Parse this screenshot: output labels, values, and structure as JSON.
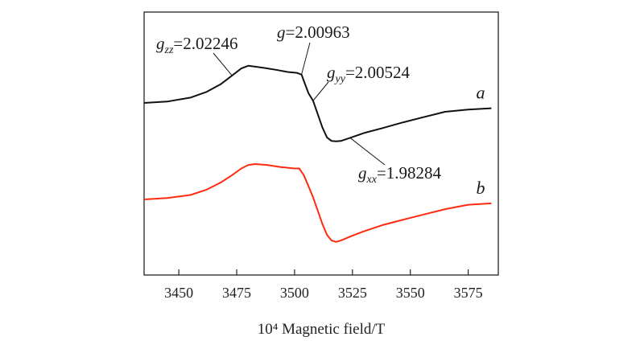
{
  "chart_data": {
    "type": "line",
    "xlabel": "10⁴ Magnetic field/T",
    "xlim": [
      3435,
      3588
    ],
    "ylim": [
      -1.2,
      1.0
    ],
    "x_ticks": [
      3450,
      3475,
      3500,
      3525,
      3550,
      3575
    ],
    "y_ticks_shown": false,
    "grid": false,
    "legend": "none",
    "series": [
      {
        "name": "a",
        "color": "#111111",
        "x": [
          3435,
          3445,
          3455,
          3462,
          3468,
          3473,
          3477,
          3480,
          3483,
          3487,
          3492,
          3497,
          3501,
          3503,
          3504,
          3506,
          3508,
          3510,
          3512,
          3514,
          3516,
          3518,
          3520,
          3524,
          3530,
          3538,
          3546,
          3555,
          3565,
          3575,
          3585
        ],
        "y": [
          0.0,
          0.03,
          0.12,
          0.25,
          0.42,
          0.62,
          0.78,
          0.84,
          0.82,
          0.79,
          0.75,
          0.7,
          0.68,
          0.64,
          0.5,
          0.22,
          0.05,
          -0.25,
          -0.55,
          -0.78,
          -0.86,
          -0.87,
          -0.86,
          -0.79,
          -0.68,
          -0.57,
          -0.45,
          -0.33,
          -0.2,
          -0.15,
          -0.12
        ]
      },
      {
        "name": "b",
        "color": "#ff2a10",
        "x": [
          3435,
          3445,
          3455,
          3462,
          3468,
          3473,
          3477,
          3480,
          3483,
          3488,
          3494,
          3500,
          3502,
          3504,
          3506,
          3508,
          3510,
          3512,
          3514,
          3516,
          3518,
          3520,
          3525,
          3530,
          3538,
          3546,
          3555,
          3565,
          3575,
          3585
        ],
        "y": [
          0.0,
          0.03,
          0.1,
          0.22,
          0.38,
          0.55,
          0.7,
          0.78,
          0.8,
          0.78,
          0.73,
          0.7,
          0.7,
          0.55,
          0.3,
          0.05,
          -0.25,
          -0.55,
          -0.8,
          -0.93,
          -0.96,
          -0.93,
          -0.82,
          -0.72,
          -0.58,
          -0.47,
          -0.35,
          -0.22,
          -0.12,
          -0.09
        ]
      }
    ],
    "annotations": [
      {
        "id": "gzz",
        "letter": "g",
        "sub": "zz",
        "value": "=2.02246",
        "x": 3473
      },
      {
        "id": "g",
        "letter": "g",
        "sub": "",
        "value": "=2.00963",
        "x": 3503
      },
      {
        "id": "gyy",
        "letter": "g",
        "sub": "yy",
        "value": "=2.00524",
        "x": 3508
      },
      {
        "id": "gxx",
        "letter": "g",
        "sub": "xx",
        "value": "=1.98284",
        "x": 3524
      }
    ]
  }
}
